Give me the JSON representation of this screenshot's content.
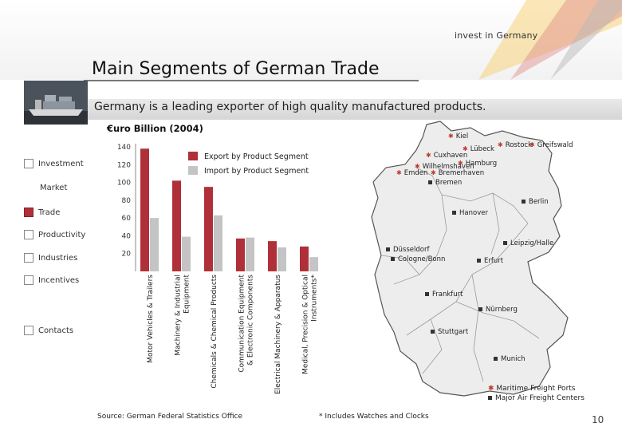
{
  "header": {
    "logo_text": "invest in Germany",
    "title": "Main Segments of German Trade",
    "subtitle": "Germany is a leading exporter of high quality manufactured products."
  },
  "sidebar": {
    "items": [
      {
        "label": "Investment",
        "active": false
      },
      {
        "label": "Market",
        "active": false
      },
      {
        "label": "Trade",
        "active": true
      },
      {
        "label": "Productivity",
        "active": false
      },
      {
        "label": "Industries",
        "active": false
      },
      {
        "label": "Incentives",
        "active": false
      },
      {
        "label": "Contacts",
        "active": false
      }
    ]
  },
  "chart_data": {
    "type": "bar",
    "title": "€uro Billion (2004)",
    "ylim": [
      0,
      140
    ],
    "yticks": [
      20,
      40,
      60,
      80,
      100,
      120,
      140
    ],
    "categories": [
      "Motor Vehicles & Trailers",
      "Machinery & Industrial Equipment",
      "Chemicals & Chemical Products",
      "Communication Equipment & Electronic Components",
      "Electrical Machinery & Apparatus",
      "Medical, Precision & Optical Instruments*"
    ],
    "category_lines": [
      [
        "Motor Vehicles & Trailers"
      ],
      [
        "Machinery & Industrial",
        "Equipment"
      ],
      [
        "Chemicals & Chemical Products"
      ],
      [
        "Communication Equipment",
        "& Electronic Components"
      ],
      [
        "Electrical Machinery & Apparatus"
      ],
      [
        "Medical, Precision & Optical",
        "Instruments*"
      ]
    ],
    "series": [
      {
        "name": "Export by Product Segment",
        "color": "#b0303a",
        "values": [
          138,
          102,
          95,
          37,
          34,
          28
        ]
      },
      {
        "name": "Import by Product Segment",
        "color": "#c4c4c4",
        "values": [
          60,
          39,
          63,
          38,
          27,
          16
        ]
      }
    ],
    "legend_position": "top"
  },
  "map": {
    "cities": [
      {
        "name": "Kiel",
        "port": true
      },
      {
        "name": "Lübeck",
        "port": true
      },
      {
        "name": "Rostock",
        "port": true
      },
      {
        "name": "Greifswald",
        "port": true
      },
      {
        "name": "Cuxhaven",
        "port": true
      },
      {
        "name": "Hamburg",
        "port": true
      },
      {
        "name": "Wilhelmshaven",
        "port": true
      },
      {
        "name": "Emden",
        "port": true
      },
      {
        "name": "Bremerhaven",
        "port": true
      },
      {
        "name": "Bremen",
        "port": true
      },
      {
        "name": "Berlin",
        "port": false
      },
      {
        "name": "Hanover",
        "port": false
      },
      {
        "name": "Leipzig/Halle",
        "port": false
      },
      {
        "name": "Düsseldorf",
        "port": false
      },
      {
        "name": "Cologne/Bonn",
        "port": false
      },
      {
        "name": "Erfurt",
        "port": false
      },
      {
        "name": "Frankfurt",
        "port": false
      },
      {
        "name": "Nürnberg",
        "port": false
      },
      {
        "name": "Stuttgart",
        "port": false
      },
      {
        "name": "Munich",
        "port": false
      }
    ],
    "legend": {
      "ports": "Maritime Freight Ports",
      "airports": "Major Air Freight Centers"
    }
  },
  "footer": {
    "source": "Source: German Federal Statistics Office",
    "note": "* Includes Watches and Clocks",
    "page": "10"
  }
}
